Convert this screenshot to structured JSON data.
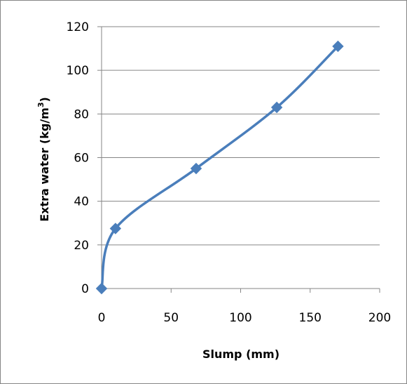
{
  "chart_data": {
    "type": "line",
    "xlabel": "Slump  (mm)",
    "ylabel": {
      "main": "Extra water  (kg/m",
      "sup": "3",
      "end": ")"
    },
    "xlim": [
      0,
      200
    ],
    "ylim": [
      0,
      120
    ],
    "xticks": [
      0,
      50,
      100,
      150,
      200
    ],
    "yticks": [
      0,
      20,
      40,
      60,
      80,
      100,
      120
    ],
    "grid": "horizontal",
    "legend": "none",
    "series": [
      {
        "x": [
          0,
          10,
          68,
          126,
          170
        ],
        "y": [
          0,
          27.5,
          55,
          83,
          111
        ],
        "marker": "diamond",
        "smooth": true,
        "color": "#4A7EBB"
      }
    ],
    "colors": {
      "line": "#4A7EBB",
      "marker": "#4A7EBB",
      "grid": "#868686",
      "axis": "#868686",
      "border": "#868686"
    }
  }
}
